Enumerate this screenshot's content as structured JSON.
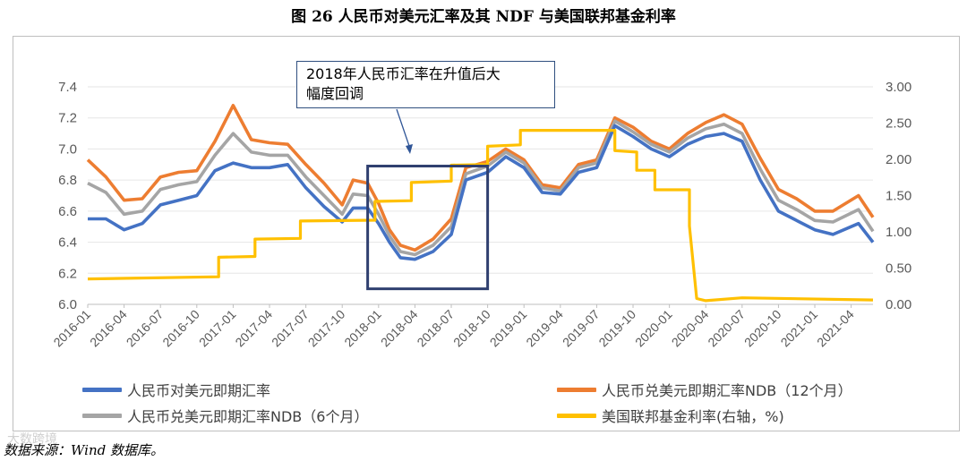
{
  "title": "图 26 人民币对美元汇率及其 NDF 与美国联邦基金利率",
  "annotation": [
    "2018年人民币汇率在升值后大",
    "幅度回调"
  ],
  "source": "数据来源：Wind 数据库。",
  "watermark": "大数跨境",
  "colors": {
    "spot": "#4472C4",
    "ndf12": "#ED7D31",
    "ndf6": "#A5A5A5",
    "fed": "#FFC000",
    "box": "#2F3F6F"
  },
  "chart_data": {
    "type": "line",
    "title": "人民币对美元汇率及其NDF与美国联邦基金利率",
    "x": [
      "2016-01",
      "2016-04",
      "2016-07",
      "2016-10",
      "2017-01",
      "2017-04",
      "2017-07",
      "2017-10",
      "2018-01",
      "2018-04",
      "2018-07",
      "2018-10",
      "2019-01",
      "2019-04",
      "2019-07",
      "2019-10",
      "2020-01",
      "2020-04",
      "2020-07",
      "2020-10",
      "2021-01",
      "2021-04"
    ],
    "x_range": [
      0,
      21.6
    ],
    "left_axis": {
      "ylim": [
        6.0,
        7.4
      ],
      "ticks": [
        "6.0",
        "6.2",
        "6.4",
        "6.6",
        "6.8",
        "7.0",
        "7.2",
        "7.4"
      ]
    },
    "right_axis": {
      "ylim": [
        0.0,
        3.0
      ],
      "ticks": [
        "0.00",
        "0.50",
        "1.00",
        "1.50",
        "2.00",
        "2.50",
        "3.00"
      ]
    },
    "highlight_box": {
      "x_range": [
        7.7,
        11.0
      ],
      "y_range": [
        6.1,
        6.89
      ]
    },
    "series": [
      {
        "name": "人民币对美元即期汇率",
        "axis": "left",
        "points": [
          [
            0,
            6.55
          ],
          [
            0.5,
            6.55
          ],
          [
            1,
            6.48
          ],
          [
            1.5,
            6.52
          ],
          [
            2,
            6.64
          ],
          [
            2.5,
            6.67
          ],
          [
            3,
            6.7
          ],
          [
            3.5,
            6.86
          ],
          [
            4,
            6.91
          ],
          [
            4.5,
            6.88
          ],
          [
            5,
            6.88
          ],
          [
            5.5,
            6.9
          ],
          [
            6,
            6.75
          ],
          [
            6.5,
            6.63
          ],
          [
            7,
            6.53
          ],
          [
            7.3,
            6.62
          ],
          [
            7.7,
            6.62
          ],
          [
            8,
            6.52
          ],
          [
            8.3,
            6.4
          ],
          [
            8.6,
            6.3
          ],
          [
            9,
            6.29
          ],
          [
            9.5,
            6.34
          ],
          [
            10,
            6.45
          ],
          [
            10.4,
            6.8
          ],
          [
            11,
            6.85
          ],
          [
            11.5,
            6.95
          ],
          [
            12,
            6.88
          ],
          [
            12.5,
            6.72
          ],
          [
            13,
            6.71
          ],
          [
            13.5,
            6.85
          ],
          [
            14,
            6.88
          ],
          [
            14.5,
            7.15
          ],
          [
            15,
            7.08
          ],
          [
            15.5,
            7.0
          ],
          [
            16,
            6.95
          ],
          [
            16.5,
            7.03
          ],
          [
            17,
            7.08
          ],
          [
            17.5,
            7.1
          ],
          [
            18,
            7.05
          ],
          [
            18.5,
            6.8
          ],
          [
            19,
            6.6
          ],
          [
            19.5,
            6.54
          ],
          [
            20,
            6.48
          ],
          [
            20.5,
            6.45
          ],
          [
            21.2,
            6.52
          ],
          [
            21.6,
            6.4
          ]
        ]
      },
      {
        "name": "人民币兑美元即期汇率NDB（12个月）",
        "axis": "left",
        "points": [
          [
            0,
            6.93
          ],
          [
            0.5,
            6.82
          ],
          [
            1,
            6.67
          ],
          [
            1.5,
            6.68
          ],
          [
            2,
            6.82
          ],
          [
            2.5,
            6.85
          ],
          [
            3,
            6.86
          ],
          [
            3.5,
            7.05
          ],
          [
            4,
            7.28
          ],
          [
            4.5,
            7.06
          ],
          [
            5,
            7.04
          ],
          [
            5.5,
            7.03
          ],
          [
            6,
            6.9
          ],
          [
            6.5,
            6.78
          ],
          [
            7,
            6.64
          ],
          [
            7.3,
            6.8
          ],
          [
            7.7,
            6.78
          ],
          [
            8,
            6.65
          ],
          [
            8.3,
            6.48
          ],
          [
            8.6,
            6.38
          ],
          [
            9,
            6.35
          ],
          [
            9.5,
            6.42
          ],
          [
            10,
            6.55
          ],
          [
            10.4,
            6.88
          ],
          [
            11,
            6.92
          ],
          [
            11.5,
            7.0
          ],
          [
            12,
            6.93
          ],
          [
            12.5,
            6.77
          ],
          [
            13,
            6.75
          ],
          [
            13.5,
            6.9
          ],
          [
            14,
            6.93
          ],
          [
            14.5,
            7.2
          ],
          [
            15,
            7.14
          ],
          [
            15.5,
            7.05
          ],
          [
            16,
            7.0
          ],
          [
            16.5,
            7.1
          ],
          [
            17,
            7.17
          ],
          [
            17.5,
            7.22
          ],
          [
            18,
            7.16
          ],
          [
            18.5,
            6.94
          ],
          [
            19,
            6.74
          ],
          [
            19.5,
            6.68
          ],
          [
            20,
            6.6
          ],
          [
            20.5,
            6.6
          ],
          [
            21.2,
            6.7
          ],
          [
            21.6,
            6.56
          ]
        ]
      },
      {
        "name": "人民币兑美元即期汇率NDB（6个月）",
        "axis": "left",
        "points": [
          [
            0,
            6.78
          ],
          [
            0.5,
            6.72
          ],
          [
            1,
            6.58
          ],
          [
            1.5,
            6.6
          ],
          [
            2,
            6.74
          ],
          [
            2.5,
            6.77
          ],
          [
            3,
            6.79
          ],
          [
            3.5,
            6.96
          ],
          [
            4,
            7.1
          ],
          [
            4.5,
            6.98
          ],
          [
            5,
            6.96
          ],
          [
            5.5,
            6.96
          ],
          [
            6,
            6.82
          ],
          [
            6.5,
            6.7
          ],
          [
            7,
            6.58
          ],
          [
            7.3,
            6.71
          ],
          [
            7.7,
            6.7
          ],
          [
            8,
            6.58
          ],
          [
            8.3,
            6.44
          ],
          [
            8.6,
            6.34
          ],
          [
            9,
            6.32
          ],
          [
            9.5,
            6.38
          ],
          [
            10,
            6.5
          ],
          [
            10.4,
            6.84
          ],
          [
            11,
            6.89
          ],
          [
            11.5,
            6.98
          ],
          [
            12,
            6.91
          ],
          [
            12.5,
            6.75
          ],
          [
            13,
            6.73
          ],
          [
            13.5,
            6.88
          ],
          [
            14,
            6.91
          ],
          [
            14.5,
            7.18
          ],
          [
            15,
            7.11
          ],
          [
            15.5,
            7.03
          ],
          [
            16,
            6.98
          ],
          [
            16.5,
            7.07
          ],
          [
            17,
            7.13
          ],
          [
            17.5,
            7.16
          ],
          [
            18,
            7.1
          ],
          [
            18.5,
            6.87
          ],
          [
            19,
            6.67
          ],
          [
            19.5,
            6.61
          ],
          [
            20,
            6.54
          ],
          [
            20.5,
            6.53
          ],
          [
            21.2,
            6.61
          ],
          [
            21.6,
            6.47
          ]
        ]
      },
      {
        "name": "美国联邦基金利率(右轴，%)",
        "axis": "right",
        "points": [
          [
            0,
            0.35
          ],
          [
            3.6,
            0.38
          ],
          [
            3.6,
            0.65
          ],
          [
            4.6,
            0.66
          ],
          [
            4.6,
            0.9
          ],
          [
            5.85,
            0.91
          ],
          [
            5.85,
            1.15
          ],
          [
            7.9,
            1.16
          ],
          [
            7.9,
            1.42
          ],
          [
            8.9,
            1.43
          ],
          [
            8.9,
            1.68
          ],
          [
            10.0,
            1.7
          ],
          [
            10.0,
            1.92
          ],
          [
            11.0,
            1.93
          ],
          [
            11.0,
            2.18
          ],
          [
            11.9,
            2.2
          ],
          [
            11.9,
            2.4
          ],
          [
            14.5,
            2.4
          ],
          [
            14.5,
            2.12
          ],
          [
            15.1,
            2.1
          ],
          [
            15.1,
            1.85
          ],
          [
            15.6,
            1.85
          ],
          [
            15.6,
            1.58
          ],
          [
            16.55,
            1.58
          ],
          [
            16.55,
            1.08
          ],
          [
            16.75,
            0.08
          ],
          [
            17.0,
            0.05
          ],
          [
            18.0,
            0.09
          ],
          [
            21.6,
            0.06
          ]
        ]
      }
    ],
    "legend": [
      {
        "label": "人民币对美元即期汇率",
        "color": "#4472C4"
      },
      {
        "label": "人民币兑美元即期汇率NDB（12个月）",
        "color": "#ED7D31"
      },
      {
        "label": "人民币兑美元即期汇率NDB（6个月）",
        "color": "#A5A5A5"
      },
      {
        "label": "美国联邦基金利率(右轴，%)",
        "color": "#FFC000"
      }
    ]
  }
}
